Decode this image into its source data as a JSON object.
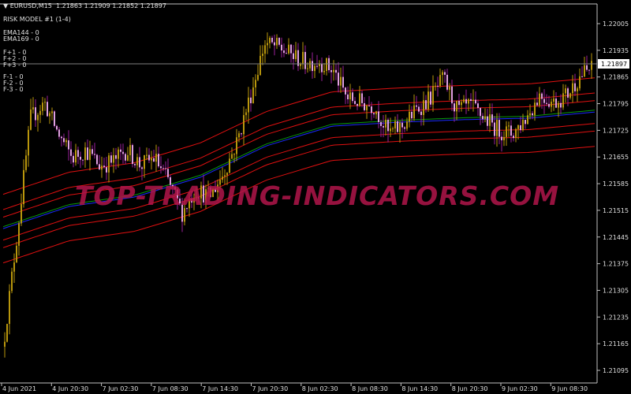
{
  "header": {
    "symbol": "EURUSD,M15",
    "ohlc": "1.21863 1.21909 1.21852 1.21897",
    "indicator_title": "RISK MODEL #1 (1-4)",
    "indicator_values": [
      "EMA144 - 0",
      "EMA169 - 0",
      "F+1 - 0",
      "F+2 - 0",
      "F+3 - 0",
      "F-1 - 0",
      "F-2 - 0",
      "F-3 - 0"
    ]
  },
  "watermark": "TOP-TRADING-INDICATORS.COM",
  "chart_data": {
    "type": "candlestick",
    "price_ticks": [
      "1.22005",
      "1.21935",
      "1.21865",
      "1.21795",
      "1.21725",
      "1.21655",
      "1.21585",
      "1.21515",
      "1.21445",
      "1.21375",
      "1.21305",
      "1.21235",
      "1.21165",
      "1.21095"
    ],
    "time_ticks": [
      "4 Jun 2021",
      "4 Jun 20:30",
      "7 Jun 02:30",
      "7 Jun 08:30",
      "7 Jun 14:30",
      "7 Jun 20:30",
      "8 Jun 02:30",
      "8 Jun 08:30",
      "8 Jun 14:30",
      "8 Jun 20:30",
      "9 Jun 02:30",
      "9 Jun 08:30"
    ],
    "current_price": "1.21897",
    "approx_close_path": [
      1.21157,
      1.21447,
      1.21757,
      1.21798,
      1.21716,
      1.21653,
      1.21674,
      1.21633,
      1.21643,
      1.21674,
      1.21633,
      1.21653,
      1.21591,
      1.21509,
      1.21571,
      1.2155,
      1.21612,
      1.21695,
      1.21819,
      1.21953,
      1.21943,
      1.21922,
      1.21902,
      1.21906,
      1.21881,
      1.21809,
      1.21798,
      1.21788,
      1.21716,
      1.21736,
      1.21778,
      1.21809,
      1.2186,
      1.21778,
      1.21788,
      1.21757,
      1.21726,
      1.21716,
      1.21757,
      1.21819,
      1.21798,
      1.21819,
      1.21871,
      1.21891
    ],
    "ema169_path": [
      1.21467,
      1.21525,
      1.2155,
      1.21602,
      1.21684,
      1.21736,
      1.21746,
      1.21753,
      1.21757,
      1.21773
    ],
    "ema144_offset": 5e-05,
    "band_offsets": [
      0.0003,
      0.0005,
      0.0009
    ],
    "colors": {
      "bull": "#b8960c",
      "bear_body": "#e0a0e0",
      "bear_wick": "#9a209a",
      "ema169": "#1a2aff",
      "ema144": "#0a9a0a",
      "bands": "#e01010",
      "grid_line": "#808080"
    }
  }
}
